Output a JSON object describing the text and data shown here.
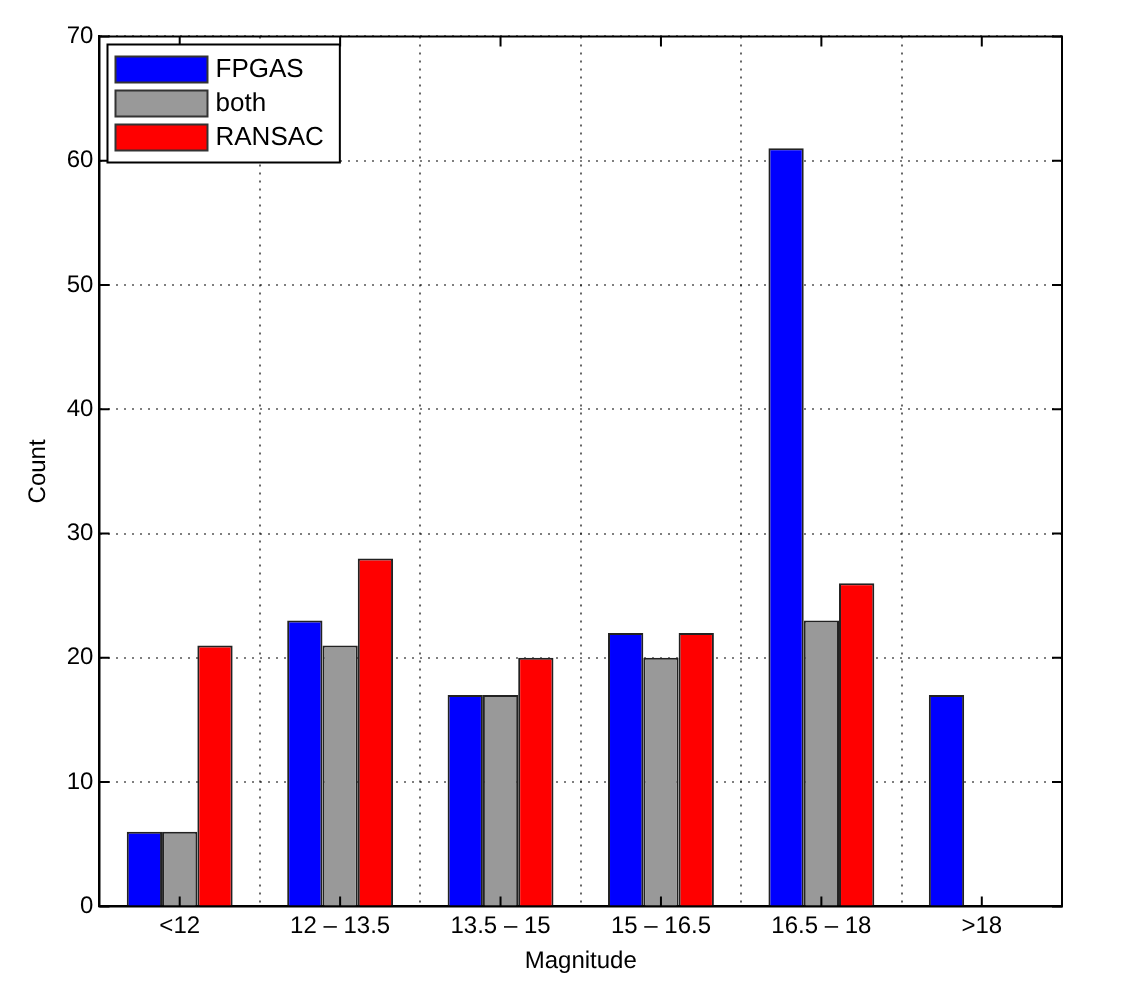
{
  "chart_data": {
    "type": "bar",
    "xlabel": "Magnitude",
    "ylabel": "Count",
    "categories": [
      "<12",
      "12 – 13.5",
      "13.5 – 15",
      "15 – 16.5",
      "16.5 – 18",
      ">18"
    ],
    "series": [
      {
        "name": "FPGAS",
        "color": "#0000ff",
        "values": [
          6,
          23,
          17,
          22,
          61,
          17
        ]
      },
      {
        "name": "both",
        "color": "#999999",
        "values": [
          6,
          21,
          17,
          20,
          23,
          null
        ]
      },
      {
        "name": "RANSAC",
        "color": "#ff0000",
        "values": [
          21,
          28,
          20,
          22,
          26,
          null
        ]
      }
    ],
    "ylim": [
      0,
      70
    ],
    "yticks": [
      0,
      10,
      20,
      30,
      40,
      50,
      60,
      70
    ],
    "grid": true,
    "legend": "top left"
  }
}
